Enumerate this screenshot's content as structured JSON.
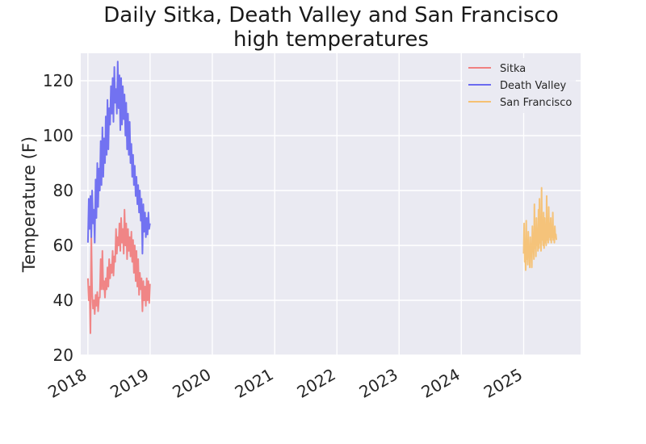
{
  "chart_data": {
    "type": "line",
    "title_line1": "Daily Sitka, Death Valley and San Francisco",
    "title_line2": "high temperatures",
    "xlabel": "",
    "ylabel": "Temperature (F)",
    "x_ticks": [
      "2018",
      "2019",
      "2020",
      "2021",
      "2022",
      "2023",
      "2024",
      "2025"
    ],
    "y_ticks": [
      "20",
      "40",
      "60",
      "80",
      "100",
      "120"
    ],
    "xlim": [
      "2017-11-20",
      "2025-12-01"
    ],
    "ylim": [
      20,
      130
    ],
    "grid": true,
    "legend_position": "top-right",
    "series": [
      {
        "name": "Sitka",
        "color": "#f08080",
        "x": [
          "2018-01-01",
          "2018-01-06",
          "2018-01-11",
          "2018-01-16",
          "2018-01-21",
          "2018-01-26",
          "2018-01-31",
          "2018-02-05",
          "2018-02-10",
          "2018-02-15",
          "2018-02-20",
          "2018-02-25",
          "2018-03-02",
          "2018-03-07",
          "2018-03-12",
          "2018-03-17",
          "2018-03-22",
          "2018-03-27",
          "2018-04-01",
          "2018-04-06",
          "2018-04-11",
          "2018-04-16",
          "2018-04-21",
          "2018-04-26",
          "2018-05-01",
          "2018-05-06",
          "2018-05-11",
          "2018-05-16",
          "2018-05-21",
          "2018-05-26",
          "2018-05-31",
          "2018-06-05",
          "2018-06-10",
          "2018-06-15",
          "2018-06-20",
          "2018-06-25",
          "2018-06-30",
          "2018-07-05",
          "2018-07-10",
          "2018-07-15",
          "2018-07-20",
          "2018-07-25",
          "2018-07-30",
          "2018-08-04",
          "2018-08-09",
          "2018-08-14",
          "2018-08-19",
          "2018-08-24",
          "2018-08-29",
          "2018-09-03",
          "2018-09-08",
          "2018-09-13",
          "2018-09-18",
          "2018-09-23",
          "2018-09-28",
          "2018-10-03",
          "2018-10-08",
          "2018-10-13",
          "2018-10-18",
          "2018-10-23",
          "2018-10-28",
          "2018-11-02",
          "2018-11-07",
          "2018-11-12",
          "2018-11-17",
          "2018-11-22",
          "2018-11-27",
          "2018-12-02",
          "2018-12-07",
          "2018-12-12",
          "2018-12-17",
          "2018-12-22",
          "2018-12-27",
          "2018-12-31"
        ],
        "values": [
          48,
          40,
          45,
          28,
          63,
          43,
          37,
          40,
          35,
          42,
          38,
          43,
          36,
          41,
          41,
          55,
          44,
          58,
          44,
          47,
          41,
          48,
          44,
          52,
          45,
          55,
          48,
          53,
          50,
          58,
          49,
          56,
          54,
          66,
          57,
          63,
          60,
          68,
          58,
          70,
          61,
          66,
          57,
          73,
          60,
          68,
          55,
          66,
          58,
          63,
          56,
          65,
          54,
          62,
          50,
          60,
          47,
          58,
          45,
          55,
          42,
          50,
          44,
          48,
          36,
          47,
          40,
          45,
          38,
          48,
          40,
          47,
          39,
          46
        ]
      },
      {
        "name": "Death Valley",
        "color": "#6b6bf0",
        "x": [
          "2018-01-01",
          "2018-01-06",
          "2018-01-11",
          "2018-01-16",
          "2018-01-21",
          "2018-01-26",
          "2018-01-31",
          "2018-02-05",
          "2018-02-10",
          "2018-02-15",
          "2018-02-20",
          "2018-02-25",
          "2018-03-02",
          "2018-03-07",
          "2018-03-12",
          "2018-03-17",
          "2018-03-22",
          "2018-03-27",
          "2018-04-01",
          "2018-04-06",
          "2018-04-11",
          "2018-04-16",
          "2018-04-21",
          "2018-04-26",
          "2018-05-01",
          "2018-05-06",
          "2018-05-11",
          "2018-05-16",
          "2018-05-21",
          "2018-05-26",
          "2018-05-31",
          "2018-06-05",
          "2018-06-10",
          "2018-06-15",
          "2018-06-20",
          "2018-06-25",
          "2018-06-30",
          "2018-07-05",
          "2018-07-10",
          "2018-07-15",
          "2018-07-20",
          "2018-07-25",
          "2018-07-30",
          "2018-08-04",
          "2018-08-09",
          "2018-08-14",
          "2018-08-19",
          "2018-08-24",
          "2018-08-29",
          "2018-09-03",
          "2018-09-08",
          "2018-09-13",
          "2018-09-18",
          "2018-09-23",
          "2018-09-28",
          "2018-10-03",
          "2018-10-08",
          "2018-10-13",
          "2018-10-18",
          "2018-10-23",
          "2018-10-28",
          "2018-11-02",
          "2018-11-07",
          "2018-11-12",
          "2018-11-17",
          "2018-11-22",
          "2018-11-27",
          "2018-12-02",
          "2018-12-07",
          "2018-12-12",
          "2018-12-17",
          "2018-12-22",
          "2018-12-27",
          "2018-12-31"
        ],
        "values": [
          61,
          77,
          66,
          78,
          63,
          80,
          68,
          73,
          61,
          84,
          70,
          90,
          74,
          88,
          80,
          98,
          82,
          103,
          85,
          99,
          90,
          107,
          93,
          113,
          95,
          110,
          104,
          118,
          108,
          121,
          105,
          125,
          112,
          117,
          108,
          127,
          110,
          122,
          102,
          121,
          104,
          118,
          106,
          115,
          100,
          112,
          95,
          108,
          93,
          105,
          90,
          97,
          85,
          93,
          82,
          89,
          78,
          85,
          75,
          82,
          72,
          80,
          69,
          77,
          57,
          75,
          65,
          72,
          63,
          70,
          64,
          72,
          66,
          68
        ]
      },
      {
        "name": "San Francisco",
        "color": "#f5c173",
        "x": [
          "2025-01-01",
          "2025-01-04",
          "2025-01-07",
          "2025-01-10",
          "2025-01-13",
          "2025-01-16",
          "2025-01-19",
          "2025-01-22",
          "2025-01-25",
          "2025-01-28",
          "2025-01-31",
          "2025-02-03",
          "2025-02-06",
          "2025-02-09",
          "2025-02-12",
          "2025-02-15",
          "2025-02-18",
          "2025-02-21",
          "2025-02-24",
          "2025-02-27",
          "2025-03-02",
          "2025-03-05",
          "2025-03-08",
          "2025-03-11",
          "2025-03-14",
          "2025-03-17",
          "2025-03-20",
          "2025-03-23",
          "2025-03-26",
          "2025-03-29",
          "2025-04-01",
          "2025-04-04",
          "2025-04-07",
          "2025-04-10",
          "2025-04-13",
          "2025-04-16",
          "2025-04-19",
          "2025-04-22",
          "2025-04-25",
          "2025-04-28",
          "2025-05-01",
          "2025-05-04",
          "2025-05-07",
          "2025-05-10",
          "2025-05-13",
          "2025-05-16",
          "2025-05-19",
          "2025-05-22",
          "2025-05-25",
          "2025-05-28",
          "2025-05-31",
          "2025-06-03",
          "2025-06-06",
          "2025-06-09",
          "2025-06-12",
          "2025-06-15",
          "2025-06-18",
          "2025-06-21",
          "2025-06-24",
          "2025-06-27",
          "2025-06-30",
          "2025-07-03",
          "2025-07-06",
          "2025-07-09",
          "2025-07-12"
        ],
        "values": [
          57,
          68,
          54,
          60,
          51,
          69,
          55,
          62,
          53,
          65,
          56,
          58,
          52,
          63,
          57,
          60,
          52,
          67,
          58,
          61,
          55,
          75,
          59,
          63,
          56,
          70,
          60,
          66,
          58,
          73,
          59,
          77,
          61,
          65,
          58,
          81,
          62,
          68,
          60,
          72,
          59,
          70,
          61,
          67,
          60,
          78,
          62,
          66,
          61,
          74,
          63,
          68,
          62,
          70,
          61,
          66,
          63,
          72,
          62,
          65,
          61,
          67,
          63,
          64,
          62
        ]
      }
    ]
  }
}
